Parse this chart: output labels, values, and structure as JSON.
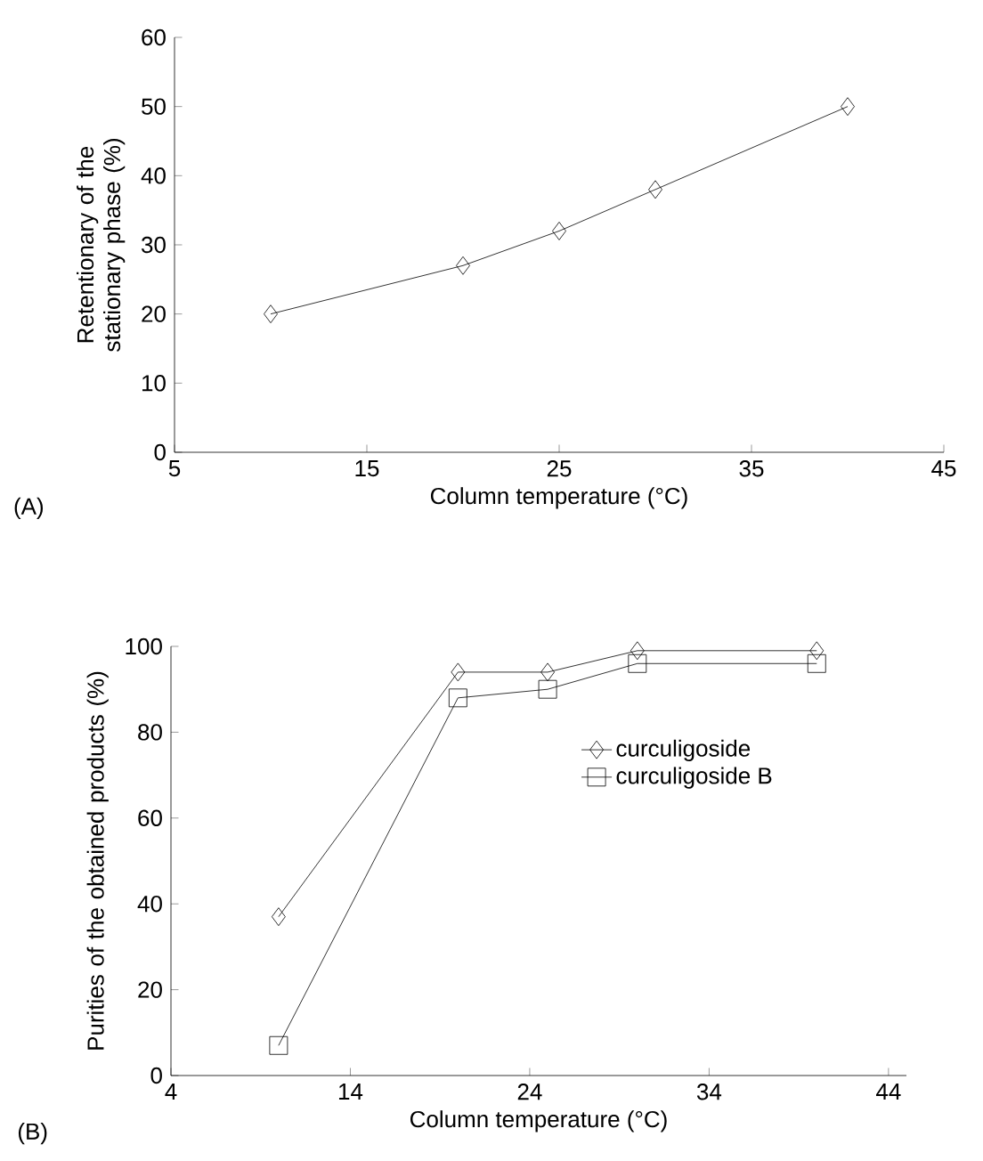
{
  "chart_data": [
    {
      "type": "line",
      "x": [
        10,
        20,
        25,
        30,
        40
      ],
      "xlabel": "Column temperature (°C)",
      "ylabel": "Retentionary of the stationary phase (%)",
      "series": [
        {
          "color": "#000000",
          "marker": "diamond",
          "values": [
            20,
            27,
            32,
            38,
            50
          ]
        }
      ],
      "xlim": [
        5,
        45
      ],
      "xticks": [
        5,
        15,
        25,
        35,
        45
      ],
      "ylim": [
        0,
        60
      ],
      "yticks": [
        0,
        10,
        20,
        30,
        40,
        50,
        60
      ],
      "annotations": [
        "(A)"
      ],
      "legend": false,
      "grid": false
    },
    {
      "type": "line",
      "x": [
        10,
        20,
        25,
        30,
        40
      ],
      "xlabel": "Column temperature (°C)",
      "ylabel": "Purities of the obtained products (%)",
      "series": [
        {
          "name": "curculigoside",
          "color": "#000000",
          "marker": "diamond",
          "values": [
            37,
            94,
            94,
            99,
            99
          ]
        },
        {
          "name": "curculigoside B",
          "color": "#000000",
          "marker": "square",
          "values": [
            7,
            88,
            90,
            96,
            96
          ]
        }
      ],
      "xlim": [
        4,
        45
      ],
      "xticks": [
        4,
        14,
        24,
        34,
        44
      ],
      "ylim": [
        0,
        100
      ],
      "yticks": [
        0,
        20,
        40,
        60,
        80,
        100
      ],
      "annotations": [
        "(B)"
      ],
      "legend": "right",
      "grid": false
    }
  ]
}
